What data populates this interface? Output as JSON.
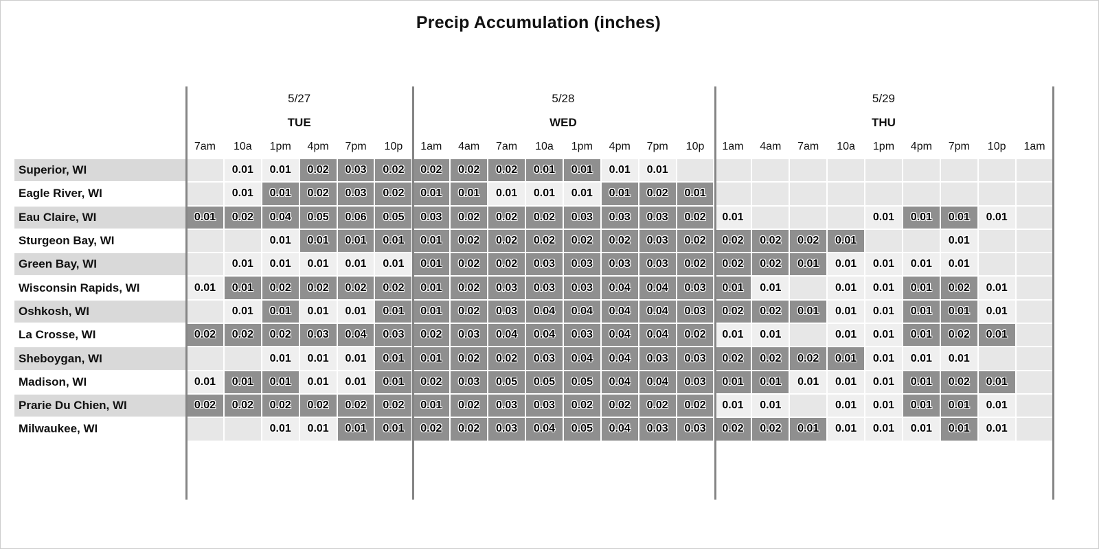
{
  "title": "Precip Accumulation (inches)",
  "colors": {
    "dark_cell": "#8f8f8f",
    "light_cell": "#efefef",
    "empty_cell": "#e7e7e7",
    "row_stripe": "#d9d9d9",
    "separator": "#858585"
  },
  "chart_data": {
    "type": "heatmap",
    "title": "Precip Accumulation (inches)",
    "units": "inches",
    "legend_position": "none",
    "grid": "off",
    "day_groups": [
      {
        "date": "5/27",
        "day": "TUE",
        "cols": 6
      },
      {
        "date": "5/28",
        "day": "WED",
        "cols": 8
      },
      {
        "date": "5/29",
        "day": "THU",
        "cols": 9
      }
    ],
    "columns": [
      "7am",
      "10a",
      "1pm",
      "4pm",
      "7pm",
      "10p",
      "1am",
      "4am",
      "7am",
      "10a",
      "1pm",
      "4pm",
      "7pm",
      "10p",
      "1am",
      "4am",
      "7am",
      "10a",
      "1pm",
      "4pm",
      "7pm",
      "10p",
      "1am"
    ],
    "rows": [
      "Superior, WI",
      "Eagle River, WI",
      "Eau Claire, WI",
      "Sturgeon Bay, WI",
      "Green Bay, WI",
      "Wisconsin Rapids, WI",
      "Oshkosh, WI",
      "La Crosse, WI",
      "Sheboygan, WI",
      "Madison, WI",
      "Prarie Du Chien, WI",
      "Milwaukee, WI"
    ],
    "values": [
      [
        "",
        "0.01",
        "0.01",
        "0.02",
        "0.03",
        "0.02",
        "0.02",
        "0.02",
        "0.02",
        "0.01",
        "0.01",
        "0.01",
        "0.01",
        "",
        "",
        "",
        "",
        "",
        "",
        "",
        "",
        "",
        ""
      ],
      [
        "",
        "0.01",
        "0.01",
        "0.02",
        "0.03",
        "0.02",
        "0.01",
        "0.01",
        "0.01",
        "0.01",
        "0.01",
        "0.01",
        "0.02",
        "0.01",
        "",
        "",
        "",
        "",
        "",
        "",
        "",
        "",
        ""
      ],
      [
        "0.01",
        "0.02",
        "0.04",
        "0.05",
        "0.06",
        "0.05",
        "0.03",
        "0.02",
        "0.02",
        "0.02",
        "0.03",
        "0.03",
        "0.03",
        "0.02",
        "0.01",
        "",
        "",
        "",
        "0.01",
        "0.01",
        "0.01",
        "0.01",
        ""
      ],
      [
        "",
        "",
        "0.01",
        "0.01",
        "0.01",
        "0.01",
        "0.01",
        "0.02",
        "0.02",
        "0.02",
        "0.02",
        "0.02",
        "0.03",
        "0.02",
        "0.02",
        "0.02",
        "0.02",
        "0.01",
        "",
        "",
        "0.01",
        "",
        ""
      ],
      [
        "",
        "0.01",
        "0.01",
        "0.01",
        "0.01",
        "0.01",
        "0.01",
        "0.02",
        "0.02",
        "0.03",
        "0.03",
        "0.03",
        "0.03",
        "0.02",
        "0.02",
        "0.02",
        "0.01",
        "0.01",
        "0.01",
        "0.01",
        "0.01",
        "",
        ""
      ],
      [
        "0.01",
        "0.01",
        "0.02",
        "0.02",
        "0.02",
        "0.02",
        "0.01",
        "0.02",
        "0.03",
        "0.03",
        "0.03",
        "0.04",
        "0.04",
        "0.03",
        "0.01",
        "0.01",
        "",
        "0.01",
        "0.01",
        "0.01",
        "0.02",
        "0.01",
        ""
      ],
      [
        "",
        "0.01",
        "0.01",
        "0.01",
        "0.01",
        "0.01",
        "0.01",
        "0.02",
        "0.03",
        "0.04",
        "0.04",
        "0.04",
        "0.04",
        "0.03",
        "0.02",
        "0.02",
        "0.01",
        "0.01",
        "0.01",
        "0.01",
        "0.01",
        "0.01",
        ""
      ],
      [
        "0.02",
        "0.02",
        "0.02",
        "0.03",
        "0.04",
        "0.03",
        "0.02",
        "0.03",
        "0.04",
        "0.04",
        "0.03",
        "0.04",
        "0.04",
        "0.02",
        "0.01",
        "0.01",
        "",
        "0.01",
        "0.01",
        "0.01",
        "0.02",
        "0.01",
        ""
      ],
      [
        "",
        "",
        "0.01",
        "0.01",
        "0.01",
        "0.01",
        "0.01",
        "0.02",
        "0.02",
        "0.03",
        "0.04",
        "0.04",
        "0.03",
        "0.03",
        "0.02",
        "0.02",
        "0.02",
        "0.01",
        "0.01",
        "0.01",
        "0.01",
        "",
        ""
      ],
      [
        "0.01",
        "0.01",
        "0.01",
        "0.01",
        "0.01",
        "0.01",
        "0.02",
        "0.03",
        "0.05",
        "0.05",
        "0.05",
        "0.04",
        "0.04",
        "0.03",
        "0.01",
        "0.01",
        "0.01",
        "0.01",
        "0.01",
        "0.01",
        "0.02",
        "0.01",
        ""
      ],
      [
        "0.02",
        "0.02",
        "0.02",
        "0.02",
        "0.02",
        "0.02",
        "0.01",
        "0.02",
        "0.03",
        "0.03",
        "0.02",
        "0.02",
        "0.02",
        "0.02",
        "0.01",
        "0.01",
        "",
        "0.01",
        "0.01",
        "0.01",
        "0.01",
        "0.01",
        ""
      ],
      [
        "",
        "",
        "0.01",
        "0.01",
        "0.01",
        "0.01",
        "0.02",
        "0.02",
        "0.03",
        "0.04",
        "0.05",
        "0.04",
        "0.03",
        "0.03",
        "0.02",
        "0.02",
        "0.01",
        "0.01",
        "0.01",
        "0.01",
        "0.01",
        "0.01",
        ""
      ]
    ],
    "shade": [
      [
        0,
        1,
        1,
        2,
        2,
        2,
        2,
        2,
        2,
        2,
        2,
        1,
        1,
        0,
        0,
        0,
        0,
        0,
        0,
        0,
        0,
        0,
        0
      ],
      [
        0,
        1,
        2,
        2,
        2,
        2,
        2,
        2,
        1,
        1,
        1,
        2,
        2,
        2,
        0,
        0,
        0,
        0,
        0,
        0,
        0,
        0,
        0
      ],
      [
        2,
        2,
        2,
        2,
        2,
        2,
        2,
        2,
        2,
        2,
        2,
        2,
        2,
        2,
        1,
        0,
        0,
        0,
        1,
        2,
        2,
        1,
        0
      ],
      [
        0,
        0,
        1,
        2,
        2,
        2,
        2,
        2,
        2,
        2,
        2,
        2,
        2,
        2,
        2,
        2,
        2,
        2,
        0,
        0,
        1,
        0,
        0
      ],
      [
        0,
        1,
        1,
        1,
        1,
        1,
        2,
        2,
        2,
        2,
        2,
        2,
        2,
        2,
        2,
        2,
        2,
        1,
        1,
        1,
        1,
        0,
        0
      ],
      [
        1,
        2,
        2,
        2,
        2,
        2,
        2,
        2,
        2,
        2,
        2,
        2,
        2,
        2,
        2,
        1,
        0,
        1,
        1,
        2,
        2,
        1,
        0
      ],
      [
        0,
        1,
        2,
        1,
        1,
        2,
        2,
        2,
        2,
        2,
        2,
        2,
        2,
        2,
        2,
        2,
        2,
        1,
        1,
        2,
        2,
        1,
        0
      ],
      [
        2,
        2,
        2,
        2,
        2,
        2,
        2,
        2,
        2,
        2,
        2,
        2,
        2,
        2,
        1,
        1,
        0,
        1,
        1,
        2,
        2,
        2,
        0
      ],
      [
        0,
        0,
        1,
        1,
        1,
        2,
        2,
        2,
        2,
        2,
        2,
        2,
        2,
        2,
        2,
        2,
        2,
        2,
        1,
        1,
        1,
        0,
        0
      ],
      [
        1,
        2,
        2,
        1,
        1,
        2,
        2,
        2,
        2,
        2,
        2,
        2,
        2,
        2,
        2,
        2,
        1,
        1,
        1,
        2,
        2,
        2,
        0
      ],
      [
        2,
        2,
        2,
        2,
        2,
        2,
        2,
        2,
        2,
        2,
        2,
        2,
        2,
        2,
        1,
        1,
        0,
        1,
        1,
        2,
        2,
        1,
        0
      ],
      [
        0,
        0,
        1,
        1,
        2,
        2,
        2,
        2,
        2,
        2,
        2,
        2,
        2,
        2,
        2,
        2,
        2,
        1,
        1,
        1,
        2,
        1,
        0
      ]
    ]
  }
}
